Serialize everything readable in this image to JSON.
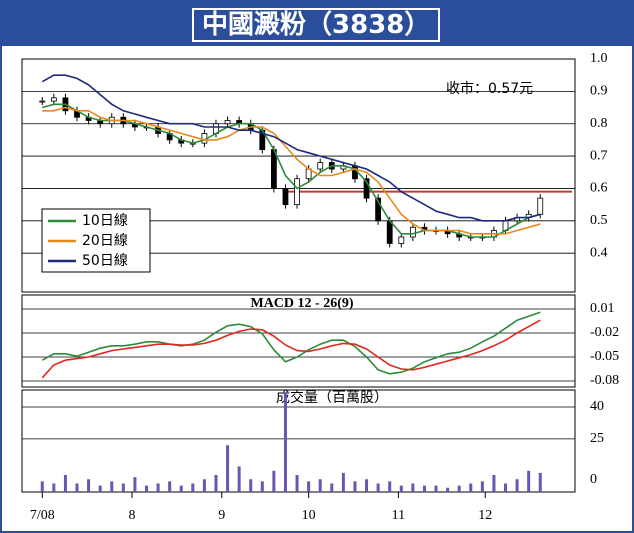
{
  "chart_data": [
    {
      "type": "candlestick",
      "title": "中國澱粉（3838）",
      "annotation": "收市：0.57元",
      "x": [
        0,
        4,
        8,
        12,
        16,
        20,
        24,
        28,
        32,
        36,
        40,
        44,
        48,
        52,
        56,
        60,
        64,
        68,
        72,
        76,
        80,
        84,
        88,
        92,
        96,
        100,
        104,
        108,
        112,
        116,
        120,
        124,
        128,
        132,
        136,
        140,
        144,
        148,
        152,
        156,
        160,
        164,
        168,
        172
      ],
      "values": [
        0.87,
        0.88,
        0.84,
        0.82,
        0.81,
        0.8,
        0.82,
        0.8,
        0.79,
        0.79,
        0.77,
        0.75,
        0.74,
        0.74,
        0.77,
        0.8,
        0.81,
        0.8,
        0.78,
        0.72,
        0.6,
        0.55,
        0.63,
        0.66,
        0.68,
        0.66,
        0.67,
        0.63,
        0.57,
        0.5,
        0.43,
        0.45,
        0.48,
        0.47,
        0.47,
        0.46,
        0.45,
        0.45,
        0.45,
        0.47,
        0.5,
        0.51,
        0.52,
        0.57
      ],
      "series": [
        {
          "name": "10日線",
          "color": "#2e8b3a",
          "values": [
            0.85,
            0.86,
            0.86,
            0.84,
            0.82,
            0.81,
            0.81,
            0.81,
            0.8,
            0.79,
            0.78,
            0.77,
            0.75,
            0.74,
            0.75,
            0.77,
            0.79,
            0.8,
            0.8,
            0.78,
            0.72,
            0.64,
            0.6,
            0.62,
            0.65,
            0.67,
            0.67,
            0.66,
            0.62,
            0.56,
            0.5,
            0.46,
            0.46,
            0.47,
            0.47,
            0.47,
            0.46,
            0.45,
            0.45,
            0.45,
            0.47,
            0.49,
            0.51,
            0.52
          ]
        },
        {
          "name": "20日線",
          "color": "#e8891a",
          "values": [
            0.84,
            0.84,
            0.85,
            0.84,
            0.84,
            0.82,
            0.81,
            0.81,
            0.81,
            0.8,
            0.79,
            0.78,
            0.77,
            0.76,
            0.75,
            0.75,
            0.76,
            0.78,
            0.79,
            0.79,
            0.77,
            0.73,
            0.69,
            0.66,
            0.64,
            0.64,
            0.65,
            0.66,
            0.65,
            0.62,
            0.57,
            0.52,
            0.49,
            0.47,
            0.47,
            0.47,
            0.47,
            0.46,
            0.46,
            0.46,
            0.46,
            0.47,
            0.48,
            0.49
          ]
        },
        {
          "name": "50日線",
          "color": "#1f2a7a",
          "values": [
            0.93,
            0.95,
            0.95,
            0.94,
            0.92,
            0.89,
            0.86,
            0.84,
            0.83,
            0.82,
            0.81,
            0.8,
            0.8,
            0.8,
            0.79,
            0.79,
            0.79,
            0.78,
            0.78,
            0.77,
            0.76,
            0.74,
            0.72,
            0.71,
            0.7,
            0.69,
            0.68,
            0.67,
            0.66,
            0.64,
            0.62,
            0.59,
            0.57,
            0.55,
            0.53,
            0.52,
            0.51,
            0.51,
            0.5,
            0.5,
            0.5,
            0.51,
            0.51,
            0.52
          ]
        }
      ],
      "ref_line": {
        "value": 0.59,
        "from": 85,
        "color": "#b5403a"
      },
      "xlim": [
        -7,
        184
      ],
      "ylim": [
        0.28,
        1.0
      ],
      "yticks": [
        {
          "value": 1,
          "label": "1.0"
        },
        0.9,
        0.8,
        0.7,
        0.6,
        0.5,
        0.4
      ],
      "grid": true
    },
    {
      "type": "line",
      "title": "MACD 12 - 26(9)",
      "x": [
        0,
        4,
        8,
        12,
        16,
        20,
        24,
        28,
        32,
        36,
        40,
        44,
        48,
        52,
        56,
        60,
        64,
        68,
        72,
        76,
        80,
        84,
        88,
        92,
        96,
        100,
        104,
        108,
        112,
        116,
        120,
        124,
        128,
        132,
        136,
        140,
        144,
        148,
        152,
        156,
        160,
        164,
        168,
        172
      ],
      "series": [
        {
          "color": "#2e8b3a",
          "values": [
            -0.054,
            -0.046,
            -0.046,
            -0.049,
            -0.044,
            -0.039,
            -0.036,
            -0.036,
            -0.034,
            -0.031,
            -0.031,
            -0.034,
            -0.036,
            -0.034,
            -0.029,
            -0.019,
            -0.011,
            -0.009,
            -0.012,
            -0.021,
            -0.041,
            -0.056,
            -0.05,
            -0.041,
            -0.034,
            -0.029,
            -0.029,
            -0.037,
            -0.05,
            -0.066,
            -0.071,
            -0.069,
            -0.064,
            -0.056,
            -0.051,
            -0.046,
            -0.044,
            -0.039,
            -0.031,
            -0.024,
            -0.014,
            -0.004,
            0.001,
            0.006
          ]
        },
        {
          "color": "#e0281e",
          "values": [
            -0.076,
            -0.06,
            -0.054,
            -0.052,
            -0.05,
            -0.046,
            -0.042,
            -0.04,
            -0.038,
            -0.036,
            -0.034,
            -0.034,
            -0.035,
            -0.035,
            -0.033,
            -0.029,
            -0.023,
            -0.018,
            -0.015,
            -0.016,
            -0.024,
            -0.035,
            -0.042,
            -0.043,
            -0.04,
            -0.036,
            -0.033,
            -0.034,
            -0.04,
            -0.05,
            -0.06,
            -0.065,
            -0.066,
            -0.063,
            -0.059,
            -0.055,
            -0.051,
            -0.047,
            -0.042,
            -0.036,
            -0.029,
            -0.02,
            -0.012,
            -0.004
          ]
        }
      ],
      "xlim": [
        -7,
        184
      ],
      "ylim": [
        -0.0875,
        0.0275
      ],
      "yticks": [
        0.01,
        -0.02,
        -0.05,
        -0.08
      ],
      "grid": true
    },
    {
      "type": "bar",
      "title": "成交量（百萬股）",
      "color": "#6a55b0",
      "x": [
        0,
        4,
        8,
        12,
        16,
        20,
        24,
        28,
        32,
        36,
        40,
        44,
        48,
        52,
        56,
        60,
        64,
        68,
        72,
        76,
        80,
        84,
        88,
        92,
        96,
        100,
        104,
        108,
        112,
        116,
        120,
        124,
        128,
        132,
        136,
        140,
        144,
        148,
        152,
        156,
        160,
        164,
        168,
        172
      ],
      "values": [
        5,
        4,
        8,
        4,
        6,
        3,
        5,
        4,
        7,
        3,
        4,
        5,
        3,
        4,
        6,
        8,
        22,
        12,
        6,
        5,
        10,
        47,
        8,
        5,
        6,
        4,
        9,
        5,
        6,
        4,
        5,
        3,
        4,
        3,
        3,
        2,
        3,
        4,
        5,
        8,
        4,
        6,
        10,
        9
      ],
      "xlim": [
        -7,
        184
      ],
      "ylim": [
        0,
        48
      ],
      "yticks": [
        40,
        25,
        0
      ],
      "grid": true,
      "xticks": [
        {
          "value": 0,
          "label": "7/08"
        },
        {
          "value": 31,
          "label": "8"
        },
        {
          "value": 62,
          "label": "9"
        },
        {
          "value": 92,
          "label": "10"
        },
        {
          "value": 123,
          "label": "11"
        },
        {
          "value": 153,
          "label": "12"
        }
      ]
    }
  ]
}
